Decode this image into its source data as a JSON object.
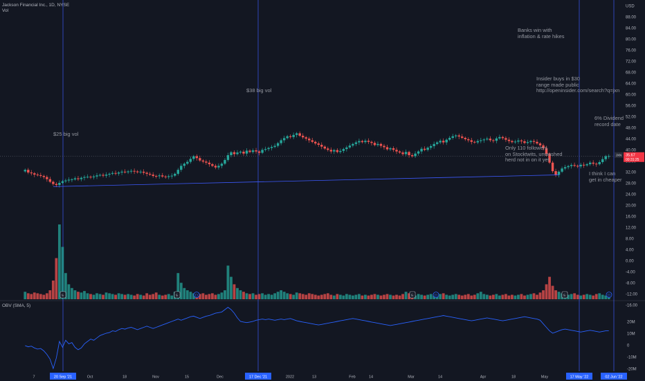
{
  "header": {
    "symbol_line": "Jackson Financial Inc., 1D, NYSE",
    "vol_label": "Vol",
    "obv_label": "OBV (SMA, 5)",
    "currency": "USD"
  },
  "annotations": {
    "a1": "$25 big vol",
    "a2": "$38 big vol",
    "a3": "Banks win with\ninflation & rate hikes",
    "a4": "Insider buys in $30\nrange made public\nhttp://openinsider.com/search?q=jxn",
    "a5": "6% Dividend\nrecord date",
    "a6": "Only 110 followers\non Stocktwits, unwashed\nherd not in on it yet",
    "a7": "I think I can\nget in cheaper"
  },
  "price_tag": {
    "value": "35.67",
    "time": "00:31:25",
    "symbol": "JXN",
    "color": "#f23645"
  },
  "colors": {
    "up": "#26a69a",
    "down": "#ef5350",
    "obv": "#2962ff",
    "marker": "#3d5afe"
  },
  "chart_data": {
    "type": "candlestick",
    "title": "Jackson Financial Inc., 1D, NYSE",
    "price_axis": {
      "ticks": [
        "USD",
        "88.00",
        "84.00",
        "80.00",
        "76.00",
        "72.00",
        "68.00",
        "64.00",
        "60.00",
        "56.00",
        "52.00",
        "48.00",
        "44.00",
        "40.00",
        "36.00",
        "32.00",
        "28.00",
        "24.00",
        "20.00",
        "16.00",
        "12.00",
        "8.00",
        "4.00",
        "0.00",
        "-4.00",
        "-8.00",
        "-12.00",
        "-16.00"
      ],
      "range": [
        -16,
        88
      ]
    },
    "obv_axis": {
      "ticks": [
        "20M",
        "10M",
        "0",
        "-10M",
        "-20M"
      ],
      "range": [
        -20,
        20
      ],
      "unit": "M"
    },
    "x_axis_ticks": [
      "7",
      "20 Sep '21",
      "Oct",
      "18",
      "Nov",
      "15",
      "Dec",
      "13",
      "17 Dec '21",
      "2022",
      "13",
      "Feb",
      "14",
      "Mar",
      "14",
      "Apr",
      "18",
      "May",
      "17 May '22",
      "02 Jun '22"
    ],
    "highlighted_dates": [
      "20 Sep '21",
      "17 Dec '21",
      "17 May '22",
      "02 Jun '22"
    ],
    "close": [
      30.5,
      29.5,
      29.2,
      28.7,
      28.5,
      28.2,
      27.8,
      27.0,
      26.0,
      25.2,
      24.8,
      25.6,
      26.2,
      26.5,
      26.8,
      26.9,
      27.3,
      27.0,
      27.5,
      27.8,
      27.9,
      27.7,
      28.0,
      28.4,
      28.6,
      28.3,
      28.7,
      29.0,
      29.3,
      29.1,
      29.5,
      29.8,
      29.6,
      29.9,
      30.1,
      29.9,
      29.6,
      29.8,
      29.4,
      29.0,
      28.7,
      28.2,
      28.1,
      28.4,
      28.0,
      27.8,
      28.1,
      28.3,
      29.0,
      30.5,
      32.0,
      32.8,
      33.5,
      34.6,
      35.6,
      34.9,
      34.0,
      33.6,
      33.2,
      32.6,
      32.0,
      31.4,
      32.0,
      32.8,
      34.2,
      36.0,
      37.1,
      36.4,
      37.0,
      37.3,
      36.6,
      37.7,
      37.2,
      37.8,
      37.4,
      36.9,
      38.0,
      38.3,
      38.7,
      39.1,
      39.5,
      40.5,
      41.6,
      42.4,
      43.1,
      42.8,
      43.6,
      44.2,
      43.3,
      42.7,
      42.2,
      41.6,
      41.0,
      40.4,
      39.9,
      39.2,
      38.5,
      38.0,
      37.4,
      37.9,
      37.2,
      37.6,
      38.3,
      38.9,
      39.6,
      40.2,
      40.8,
      41.3,
      40.9,
      41.4,
      41.0,
      40.6,
      39.8,
      40.2,
      39.5,
      39.0,
      38.2,
      38.6,
      38.0,
      37.4,
      37.0,
      36.4,
      37.2,
      36.0,
      35.6,
      36.6,
      37.4,
      38.4,
      38.0,
      38.8,
      39.4,
      40.2,
      40.8,
      41.4,
      40.8,
      41.8,
      42.5,
      43.1,
      43.4,
      43.0,
      42.5,
      42.0,
      41.6,
      41.0,
      40.8,
      41.3,
      41.6,
      41.9,
      42.2,
      41.6,
      41.4,
      42.3,
      42.8,
      42.4,
      41.8,
      41.3,
      40.9,
      41.1,
      41.5,
      41.2,
      40.6,
      40.9,
      41.3,
      41.0,
      40.4,
      39.7,
      38.6,
      36.5,
      33.2,
      30.0,
      28.6,
      29.8,
      31.0,
      31.5,
      31.9,
      32.3,
      32.0,
      31.8,
      32.4,
      32.2,
      32.6,
      33.2,
      32.8,
      32.6,
      33.4,
      34.5,
      35.6,
      35.67
    ],
    "volume_relative": [
      0.1,
      0.08,
      0.07,
      0.09,
      0.08,
      0.07,
      0.06,
      0.08,
      0.12,
      0.25,
      0.55,
      1.0,
      0.7,
      0.35,
      0.2,
      0.15,
      0.12,
      0.1,
      0.09,
      0.11,
      0.08,
      0.07,
      0.06,
      0.08,
      0.07,
      0.06,
      0.09,
      0.08,
      0.07,
      0.06,
      0.08,
      0.07,
      0.06,
      0.07,
      0.06,
      0.05,
      0.07,
      0.06,
      0.05,
      0.08,
      0.06,
      0.07,
      0.09,
      0.06,
      0.05,
      0.06,
      0.07,
      0.05,
      0.1,
      0.35,
      0.22,
      0.15,
      0.12,
      0.1,
      0.08,
      0.09,
      0.07,
      0.08,
      0.06,
      0.07,
      0.08,
      0.06,
      0.07,
      0.09,
      0.12,
      0.45,
      0.3,
      0.2,
      0.15,
      0.12,
      0.1,
      0.08,
      0.07,
      0.08,
      0.06,
      0.07,
      0.08,
      0.06,
      0.07,
      0.06,
      0.08,
      0.1,
      0.12,
      0.1,
      0.08,
      0.07,
      0.06,
      0.09,
      0.08,
      0.07,
      0.06,
      0.08,
      0.07,
      0.06,
      0.05,
      0.06,
      0.07,
      0.08,
      0.06,
      0.05,
      0.07,
      0.06,
      0.05,
      0.07,
      0.06,
      0.05,
      0.06,
      0.07,
      0.05,
      0.06,
      0.05,
      0.06,
      0.07,
      0.06,
      0.05,
      0.06,
      0.07,
      0.06,
      0.05,
      0.06,
      0.05,
      0.07,
      0.1,
      0.08,
      0.06,
      0.05,
      0.07,
      0.06,
      0.05,
      0.06,
      0.07,
      0.05,
      0.06,
      0.07,
      0.08,
      0.06,
      0.05,
      0.06,
      0.07,
      0.06,
      0.05,
      0.06,
      0.07,
      0.05,
      0.06,
      0.08,
      0.1,
      0.07,
      0.06,
      0.05,
      0.06,
      0.07,
      0.05,
      0.06,
      0.07,
      0.05,
      0.06,
      0.05,
      0.06,
      0.07,
      0.05,
      0.06,
      0.07,
      0.08,
      0.06,
      0.09,
      0.12,
      0.2,
      0.3,
      0.18,
      0.12,
      0.1,
      0.08,
      0.07,
      0.06,
      0.07,
      0.08,
      0.06,
      0.05,
      0.06,
      0.07,
      0.06,
      0.05,
      0.07,
      0.08,
      0.06,
      0.05,
      0.06
    ],
    "obv_values": [
      -0.5,
      -1.5,
      -1.0,
      -2.5,
      -3.5,
      -3.0,
      -5.0,
      -8.0,
      -12.0,
      -20.0,
      -11.0,
      3.0,
      -2.0,
      4.0,
      1.0,
      2.0,
      -2.0,
      -4.0,
      -2.5,
      1.0,
      3.0,
      5.0,
      4.0,
      6.0,
      8.0,
      9.0,
      10.0,
      10.5,
      12.0,
      11.5,
      13.0,
      14.0,
      13.5,
      14.5,
      15.0,
      14.0,
      13.0,
      14.0,
      15.0,
      16.0,
      15.0,
      14.0,
      15.0,
      16.0,
      17.0,
      18.0,
      19.0,
      20.0,
      21.0,
      22.0,
      21.0,
      22.0,
      23.0,
      24.0,
      24.5,
      23.5,
      22.5,
      23.5,
      24.5,
      25.0,
      26.0,
      27.0,
      27.5,
      28.0,
      30.0,
      32.0,
      30.0,
      27.0,
      23.0,
      20.0,
      19.5,
      19.0,
      19.5,
      20.0,
      21.0,
      21.5,
      22.0,
      21.5,
      22.0,
      21.5,
      21.0,
      21.5,
      22.0,
      21.5,
      22.0,
      22.5,
      21.5,
      20.5,
      20.0,
      19.5,
      19.0,
      18.5,
      18.0,
      17.5,
      17.0,
      17.5,
      18.0,
      18.5,
      19.0,
      19.5,
      20.0,
      20.5,
      21.0,
      21.5,
      22.0,
      22.5,
      22.0,
      21.5,
      21.0,
      20.5,
      20.0,
      19.5,
      19.0,
      18.5,
      18.0,
      17.5,
      17.0,
      16.5,
      17.0,
      17.5,
      18.0,
      18.5,
      19.0,
      19.5,
      20.0,
      20.5,
      21.0,
      21.5,
      22.0,
      22.5,
      23.0,
      23.5,
      24.0,
      24.5,
      25.0,
      24.5,
      24.0,
      23.5,
      23.0,
      22.5,
      22.0,
      21.5,
      21.0,
      20.5,
      21.0,
      21.5,
      22.0,
      22.5,
      23.0,
      22.5,
      22.0,
      21.5,
      21.0,
      20.5,
      21.0,
      21.5,
      22.0,
      22.5,
      23.0,
      23.5,
      24.0,
      23.5,
      23.0,
      22.5,
      22.0,
      21.0,
      18.0,
      15.0,
      12.0,
      10.0,
      11.0,
      12.0,
      13.0,
      13.5,
      13.0,
      12.5,
      12.0,
      11.5,
      11.0,
      11.5,
      12.0,
      12.5,
      12.0,
      11.5,
      11.0,
      11.5,
      12.0,
      12.0
    ],
    "trendline": {
      "from": 24.2,
      "to": 28.6
    },
    "earnings_markers": [
      "E",
      "E",
      "D",
      "E",
      "D",
      "E",
      "D",
      "D"
    ]
  }
}
